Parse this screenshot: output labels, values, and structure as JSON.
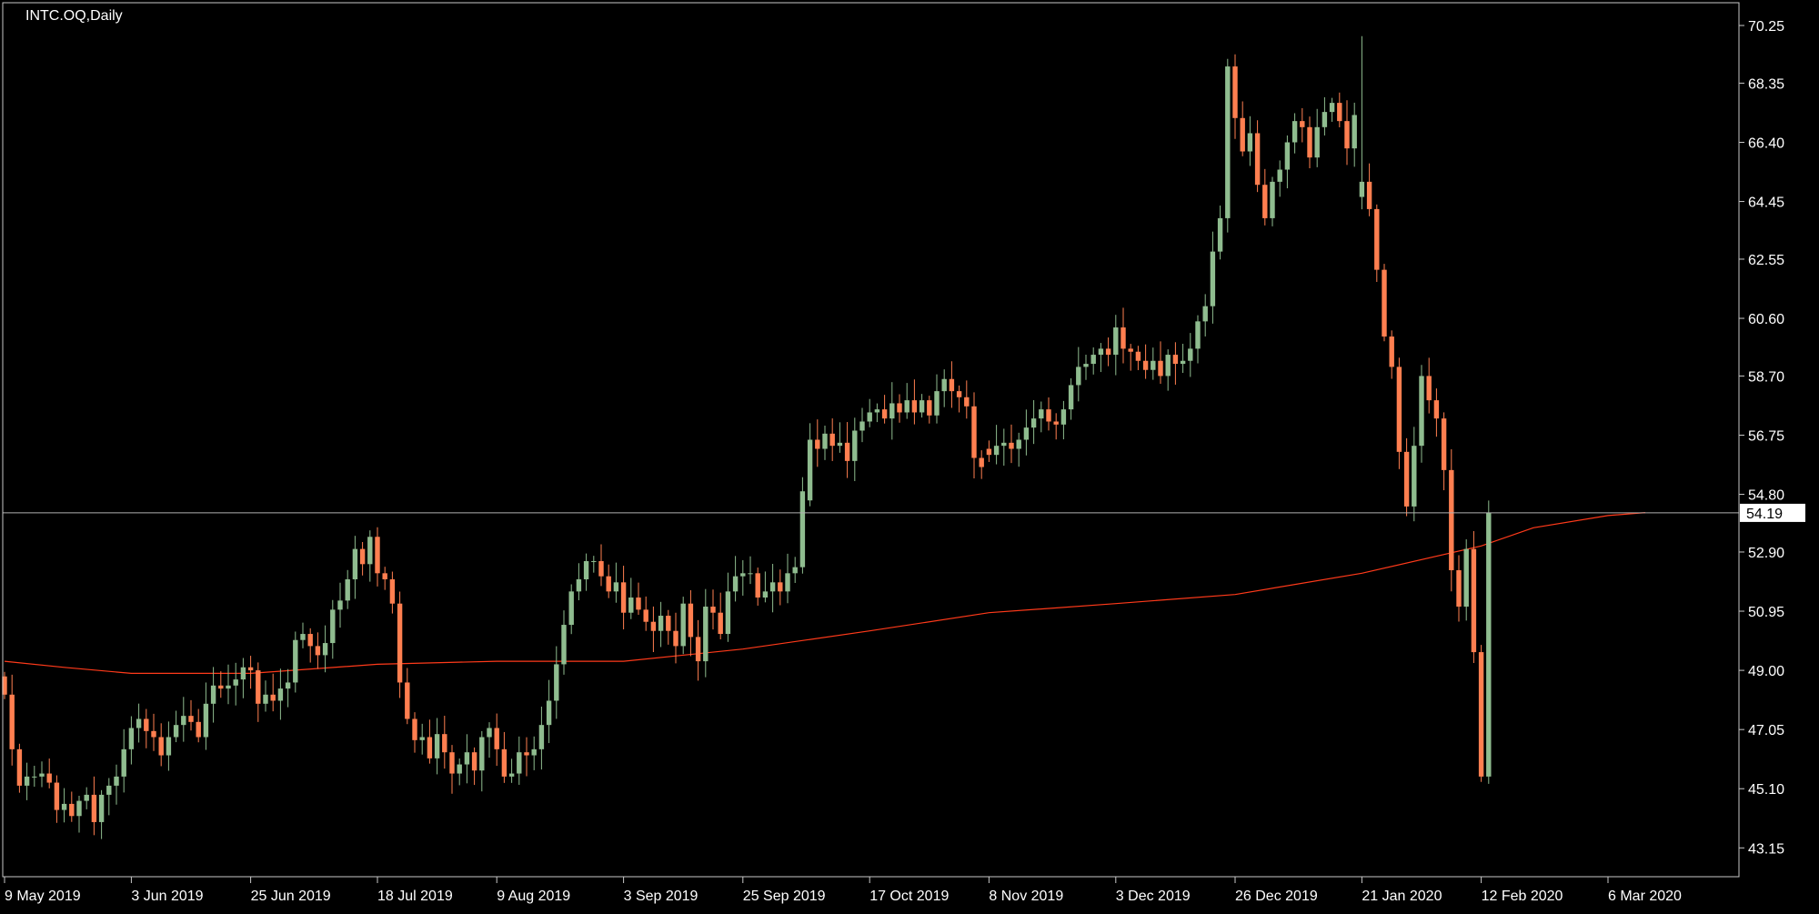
{
  "chart_title": "INTC.OQ,Daily",
  "colors": {
    "background": "#000000",
    "frame": "#c8c8c8",
    "bull": "#8fbc8f",
    "bear": "#ff7f50",
    "ma_line": "#ff3a1a",
    "price_line": "#b0b0b0",
    "text": "#ffffff"
  },
  "chart_data": {
    "type": "candlestick",
    "symbol": "INTC.OQ",
    "timeframe": "Daily",
    "title": "INTC.OQ,Daily",
    "ylim": [
      42.2,
      71.0
    ],
    "y_ticks": [
      "70.25",
      "68.35",
      "66.40",
      "64.45",
      "62.55",
      "60.60",
      "58.70",
      "56.75",
      "54.80",
      "52.90",
      "50.95",
      "49.00",
      "47.05",
      "45.10",
      "43.15"
    ],
    "x_ticks": [
      {
        "label": "9 May 2019",
        "bar": 0
      },
      {
        "label": "3 Jun 2019",
        "bar": 17
      },
      {
        "label": "25 Jun 2019",
        "bar": 33
      },
      {
        "label": "18 Jul 2019",
        "bar": 50
      },
      {
        "label": "9 Aug 2019",
        "bar": 66
      },
      {
        "label": "3 Sep 2019",
        "bar": 83
      },
      {
        "label": "25 Sep 2019",
        "bar": 99
      },
      {
        "label": "17 Oct 2019",
        "bar": 116
      },
      {
        "label": "8 Nov 2019",
        "bar": 132
      },
      {
        "label": "3 Dec 2019",
        "bar": 149
      },
      {
        "label": "26 Dec 2019",
        "bar": 165
      },
      {
        "label": "21 Jan 2020",
        "bar": 182
      },
      {
        "label": "12 Feb 2020",
        "bar": 198
      },
      {
        "label": "6 Mar 2020",
        "bar": 215
      }
    ],
    "current_price": 54.19,
    "current_price_label": "54.19",
    "closes": [
      48.2,
      46.4,
      45.2,
      45.5,
      45.5,
      45.6,
      45.3,
      44.4,
      44.6,
      44.2,
      44.7,
      44.9,
      44.0,
      44.9,
      45.2,
      45.5,
      46.4,
      47.1,
      47.4,
      47.0,
      46.8,
      46.2,
      46.8,
      47.2,
      47.5,
      47.3,
      46.8,
      47.9,
      48.5,
      48.4,
      48.5,
      48.7,
      49.1,
      49.0,
      47.9,
      48.2,
      48.0,
      48.4,
      48.6,
      50.0,
      50.2,
      49.8,
      49.5,
      49.9,
      51.0,
      51.3,
      52.0,
      53.0,
      52.5,
      53.4,
      52.2,
      52.0,
      51.2,
      48.6,
      47.4,
      46.7,
      46.8,
      46.1,
      46.9,
      46.3,
      45.6,
      45.9,
      46.3,
      45.7,
      46.8,
      47.1,
      46.4,
      45.5,
      45.6,
      46.3,
      46.2,
      46.4,
      47.2,
      48.0,
      49.2,
      50.5,
      51.6,
      52.0,
      52.6,
      52.6,
      52.1,
      51.6,
      51.9,
      50.9,
      51.4,
      51.0,
      50.6,
      50.3,
      50.8,
      50.3,
      49.8,
      51.2,
      50.1,
      49.3,
      51.1,
      50.9,
      50.2,
      51.6,
      52.1,
      52.2,
      52.2,
      51.4,
      51.6,
      51.9,
      51.6,
      52.2,
      52.4,
      54.9,
      56.6,
      56.3,
      56.8,
      56.4,
      56.5,
      55.9,
      56.9,
      57.2,
      57.5,
      57.6,
      57.3,
      57.8,
      57.5,
      57.9,
      57.5,
      57.9,
      57.4,
      58.2,
      58.6,
      58.2,
      58.0,
      57.7,
      56.0,
      55.7,
      56.1,
      56.4,
      56.5,
      56.3,
      56.6,
      57.0,
      57.3,
      57.6,
      57.2,
      57.1,
      57.6,
      58.4,
      59.0,
      59.1,
      59.4,
      59.6,
      59.4,
      60.3,
      59.6,
      59.5,
      59.2,
      58.9,
      59.2,
      58.7,
      59.4,
      59.1,
      59.2,
      59.6,
      60.5,
      61.0,
      62.8,
      63.9,
      68.9,
      67.2,
      66.1,
      66.7,
      65.0,
      63.9,
      65.1,
      65.5,
      66.4,
      67.1,
      66.9,
      65.9,
      66.9,
      67.4,
      67.7,
      67.1,
      66.2,
      67.3,
      65.1,
      64.2,
      62.2,
      60.0,
      59.0,
      56.2,
      54.4,
      56.4,
      58.7,
      57.9,
      57.3,
      55.6,
      52.3,
      51.1,
      53.0,
      49.6,
      45.5,
      54.19
    ],
    "ma_period": 200,
    "moving_average_anchors": [
      [
        0,
        49.3
      ],
      [
        8,
        49.1
      ],
      [
        17,
        48.9
      ],
      [
        33,
        48.9
      ],
      [
        50,
        49.2
      ],
      [
        66,
        49.3
      ],
      [
        83,
        49.3
      ],
      [
        99,
        49.7
      ],
      [
        116,
        50.3
      ],
      [
        132,
        50.9
      ],
      [
        149,
        51.2
      ],
      [
        165,
        51.5
      ],
      [
        182,
        52.2
      ],
      [
        198,
        53.1
      ],
      [
        205,
        53.7
      ],
      [
        215,
        54.1
      ],
      [
        220,
        54.2
      ]
    ]
  }
}
